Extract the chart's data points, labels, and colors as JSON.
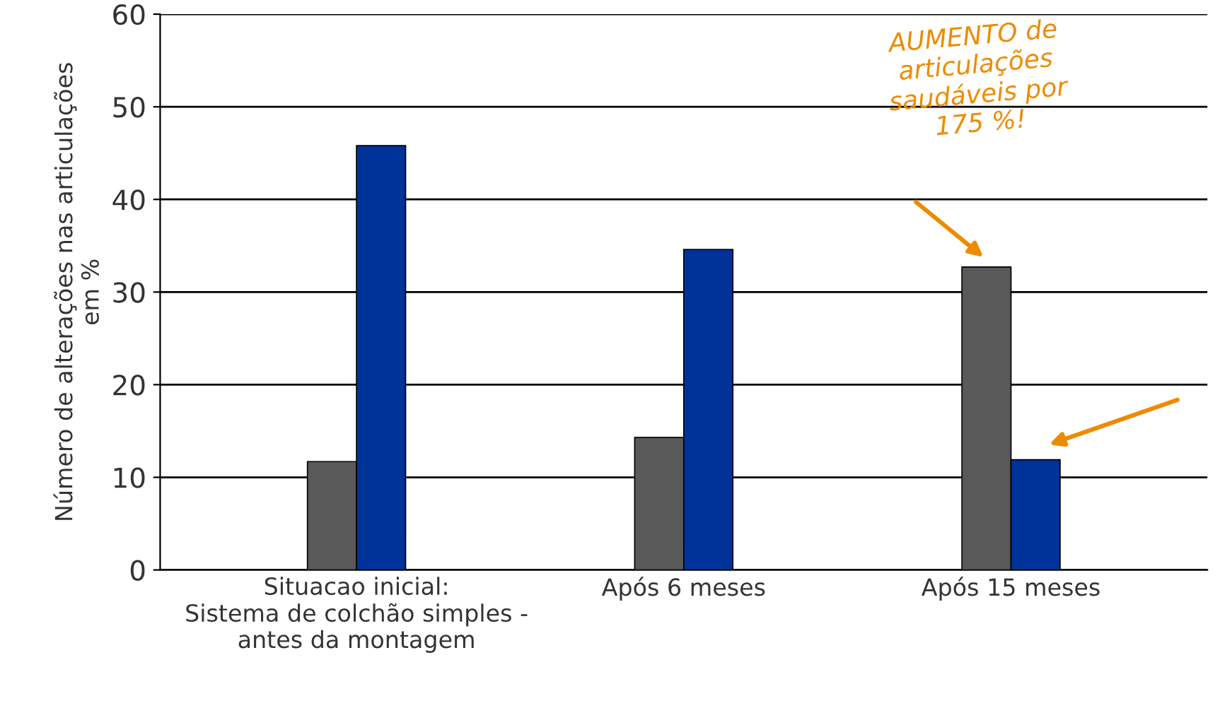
{
  "chart_data": {
    "type": "bar",
    "ylabel": "Número de alterações nas articulações\nem %",
    "categories": [
      "Situacao inicial:\nSistema de colchão simples -\nantes da montagem",
      "Após 6 meses",
      "Após 15 meses"
    ],
    "series": [
      {
        "color": "#595959",
        "values": [
          11.7,
          14.3,
          32.7
        ]
      },
      {
        "color": "#003399",
        "values": [
          45.8,
          34.6,
          11.9
        ]
      }
    ],
    "ylim": [
      0,
      60
    ],
    "yticks": [
      0,
      10,
      20,
      30,
      40,
      50,
      60
    ],
    "grid": "y",
    "legend": false,
    "annotations": [
      "AUMENTO de\narticulações\nsaudáveis por\n175 %!"
    ]
  }
}
